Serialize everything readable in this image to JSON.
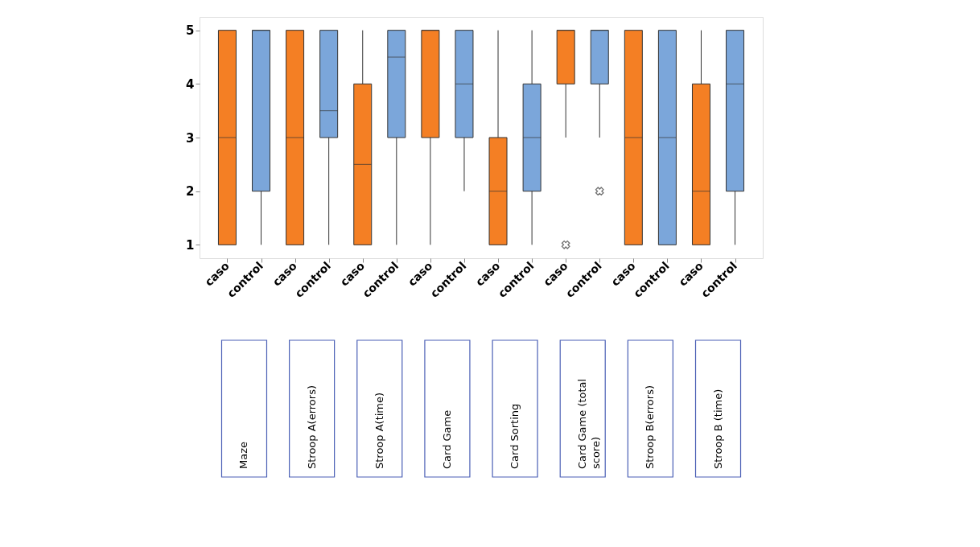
{
  "chart_data": {
    "type": "box",
    "categories": [
      "caso",
      "control",
      "caso",
      "control",
      "caso",
      "control",
      "caso",
      "control",
      "caso",
      "control",
      "caso",
      "control",
      "caso",
      "control",
      "caso",
      "control"
    ],
    "colors": [
      "#f47f24",
      "#7ba6da",
      "#f47f24",
      "#7ba6da",
      "#f47f24",
      "#7ba6da",
      "#f47f24",
      "#7ba6da",
      "#f47f24",
      "#7ba6da",
      "#f47f24",
      "#7ba6da",
      "#f47f24",
      "#7ba6da",
      "#f47f24",
      "#7ba6da"
    ],
    "boxes": [
      {
        "low": 1,
        "q1": 1,
        "median": 3,
        "q3": 5,
        "high": 5
      },
      {
        "low": 1,
        "q1": 2,
        "median": 5,
        "q3": 5,
        "high": 5
      },
      {
        "low": 1,
        "q1": 1,
        "median": 3,
        "q3": 5,
        "high": 5
      },
      {
        "low": 1,
        "q1": 3,
        "median": 3.5,
        "q3": 5,
        "high": 5
      },
      {
        "low": 1,
        "q1": 1,
        "median": 2.5,
        "q3": 4,
        "high": 5
      },
      {
        "low": 1,
        "q1": 3,
        "median": 4.5,
        "q3": 5,
        "high": 5
      },
      {
        "low": 1,
        "q1": 3,
        "median": 5,
        "q3": 5,
        "high": 5
      },
      {
        "low": 2,
        "q1": 3,
        "median": 4,
        "q3": 5,
        "high": 5
      },
      {
        "low": 1,
        "q1": 1,
        "median": 2,
        "q3": 3,
        "high": 5
      },
      {
        "low": 1,
        "q1": 2,
        "median": 3,
        "q3": 4,
        "high": 5
      },
      {
        "low": 3,
        "q1": 4,
        "median": 5,
        "q3": 5,
        "high": 5,
        "outliers": [
          1
        ]
      },
      {
        "low": 3,
        "q1": 4,
        "median": 5,
        "q3": 5,
        "high": 5,
        "outliers": [
          2
        ]
      },
      {
        "low": 1,
        "q1": 1,
        "median": 3,
        "q3": 5,
        "high": 5
      },
      {
        "low": 1,
        "q1": 1,
        "median": 3,
        "q3": 5,
        "high": 5
      },
      {
        "low": 1,
        "q1": 1,
        "median": 2,
        "q3": 4,
        "high": 5
      },
      {
        "low": 1,
        "q1": 2,
        "median": 4,
        "q3": 5,
        "high": 5
      }
    ],
    "ylim": [
      0.75,
      5.25
    ],
    "yticks": [
      1,
      2,
      3,
      4,
      5
    ],
    "grid": false,
    "annotations": [
      "Maze",
      "Stroop A(errors)",
      "Stroop A(time)",
      "Card Game",
      "Card Sorting",
      "Card Game (total score)",
      "Stroop B(errors)",
      "Stroop B (time)"
    ]
  }
}
